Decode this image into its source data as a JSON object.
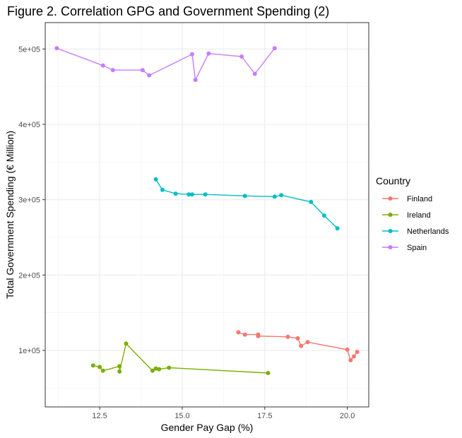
{
  "chart_data": {
    "type": "line",
    "title": "Figure 2. Correlation GPG and Government Spending (2)",
    "xlabel": "Gender Pay Gap (%)",
    "ylabel": "Total Government Spending (€ Million)",
    "xlim": [
      10.85,
      20.65
    ],
    "ylim": [
      25000,
      535000
    ],
    "x_ticks": [
      12.5,
      15.0,
      17.5,
      20.0
    ],
    "x_tick_labels": [
      "12.5",
      "15.0",
      "17.5",
      "20.0"
    ],
    "y_ticks": [
      100000,
      200000,
      300000,
      400000,
      500000
    ],
    "y_tick_labels": [
      "1e+05",
      "2e+05",
      "3e+05",
      "4e+05",
      "5e+05"
    ],
    "grid": true,
    "legend_position": "right",
    "legend_title": "Country",
    "series": [
      {
        "name": "Finland",
        "color": "#F8766D",
        "points": [
          [
            16.7,
            124000
          ],
          [
            16.9,
            121000
          ],
          [
            17.3,
            121000
          ],
          [
            17.3,
            119000
          ],
          [
            18.2,
            118000
          ],
          [
            18.5,
            116000
          ],
          [
            18.6,
            106000
          ],
          [
            18.8,
            111000
          ],
          [
            20.0,
            101000
          ],
          [
            20.3,
            98000
          ],
          [
            20.2,
            92000
          ],
          [
            20.1,
            87000
          ]
        ]
      },
      {
        "name": "Ireland",
        "color": "#7CAE00",
        "points": [
          [
            12.3,
            80000
          ],
          [
            12.5,
            78000
          ],
          [
            12.6,
            73000
          ],
          [
            13.1,
            79000
          ],
          [
            13.1,
            72000
          ],
          [
            13.3,
            109000
          ],
          [
            14.1,
            73000
          ],
          [
            14.2,
            76000
          ],
          [
            14.3,
            75000
          ],
          [
            14.6,
            77000
          ],
          [
            17.6,
            70000
          ]
        ]
      },
      {
        "name": "Netherlands",
        "color": "#00BFC4",
        "points": [
          [
            14.2,
            327000
          ],
          [
            14.4,
            313000
          ],
          [
            14.8,
            308000
          ],
          [
            15.2,
            307000
          ],
          [
            15.3,
            307000
          ],
          [
            15.7,
            307000
          ],
          [
            16.9,
            305000
          ],
          [
            17.8,
            304000
          ],
          [
            18.0,
            306000
          ],
          [
            18.9,
            297000
          ],
          [
            19.3,
            279000
          ],
          [
            19.7,
            262000
          ]
        ]
      },
      {
        "name": "Spain",
        "color": "#C77CFF",
        "points": [
          [
            11.2,
            501000
          ],
          [
            12.6,
            478000
          ],
          [
            12.9,
            472000
          ],
          [
            13.8,
            472000
          ],
          [
            14.0,
            465000
          ],
          [
            15.3,
            493000
          ],
          [
            15.4,
            459000
          ],
          [
            15.8,
            494000
          ],
          [
            16.8,
            490000
          ],
          [
            17.2,
            467000
          ],
          [
            17.8,
            501000
          ]
        ]
      }
    ]
  }
}
